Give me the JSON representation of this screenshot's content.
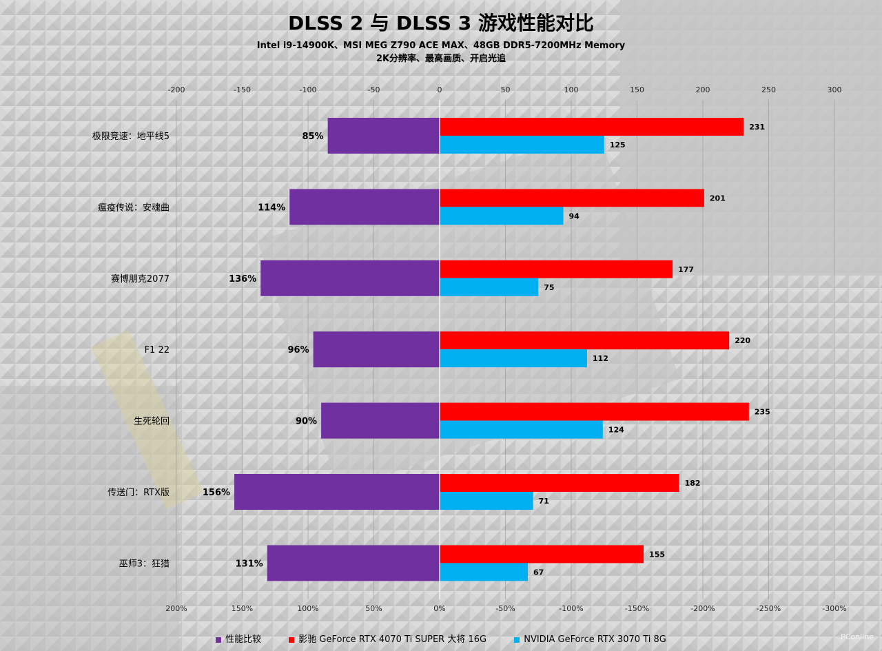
{
  "title": "DLSS 2 与 DLSS 3 游戏性能对比",
  "subtitle_line1": "Intel i9-14900K、MSI MEG Z790 ACE MAX、48GB DDR5-7200MHz Memory",
  "subtitle_line2": "2K分辨率、最高画质、开启光追",
  "watermark": "PConline",
  "colors": {
    "compare": "#7030a0",
    "rtx4070": "#ff0000",
    "rtx3070": "#00b0f0"
  },
  "chart_data": {
    "type": "bar",
    "orientation": "horizontal",
    "categories": [
      "极限竞速：地平线5",
      "瘟疫传说：安魂曲",
      "赛博朋克2077",
      "F1 22",
      "生死轮回",
      "传送门：RTX版",
      "巫师3：狂猎"
    ],
    "series": [
      {
        "name": "性能比较",
        "unit": "%",
        "axis": "bottom",
        "values": [
          85,
          114,
          136,
          96,
          90,
          156,
          131
        ]
      },
      {
        "name": "影驰 GeForce RTX 4070 Ti SUPER 大将 16G",
        "axis": "top",
        "values": [
          231,
          201,
          177,
          220,
          235,
          182,
          155
        ]
      },
      {
        "name": "NVIDIA GeForce RTX 3070 Ti 8G",
        "axis": "top",
        "values": [
          125,
          94,
          75,
          112,
          124,
          71,
          67
        ]
      }
    ],
    "top_axis": {
      "range": [
        -200,
        300
      ],
      "ticks": [
        -200,
        -150,
        -100,
        -50,
        0,
        50,
        100,
        150,
        200,
        250,
        300
      ],
      "tick_labels": [
        "-200",
        "-150",
        "-100",
        "-50",
        "0",
        "50",
        "100",
        "150",
        "200",
        "250",
        "300"
      ]
    },
    "bottom_axis": {
      "range": [
        200,
        -300
      ],
      "ticks": [
        200,
        150,
        100,
        50,
        0,
        -50,
        -100,
        -150,
        -200,
        -250,
        -300
      ],
      "tick_labels": [
        "200%",
        "150%",
        "100%",
        "50%",
        "0%",
        "-50%",
        "-100%",
        "-150%",
        "-200%",
        "-250%",
        "-300%"
      ]
    },
    "grid": true,
    "legend": "bottom-center"
  }
}
